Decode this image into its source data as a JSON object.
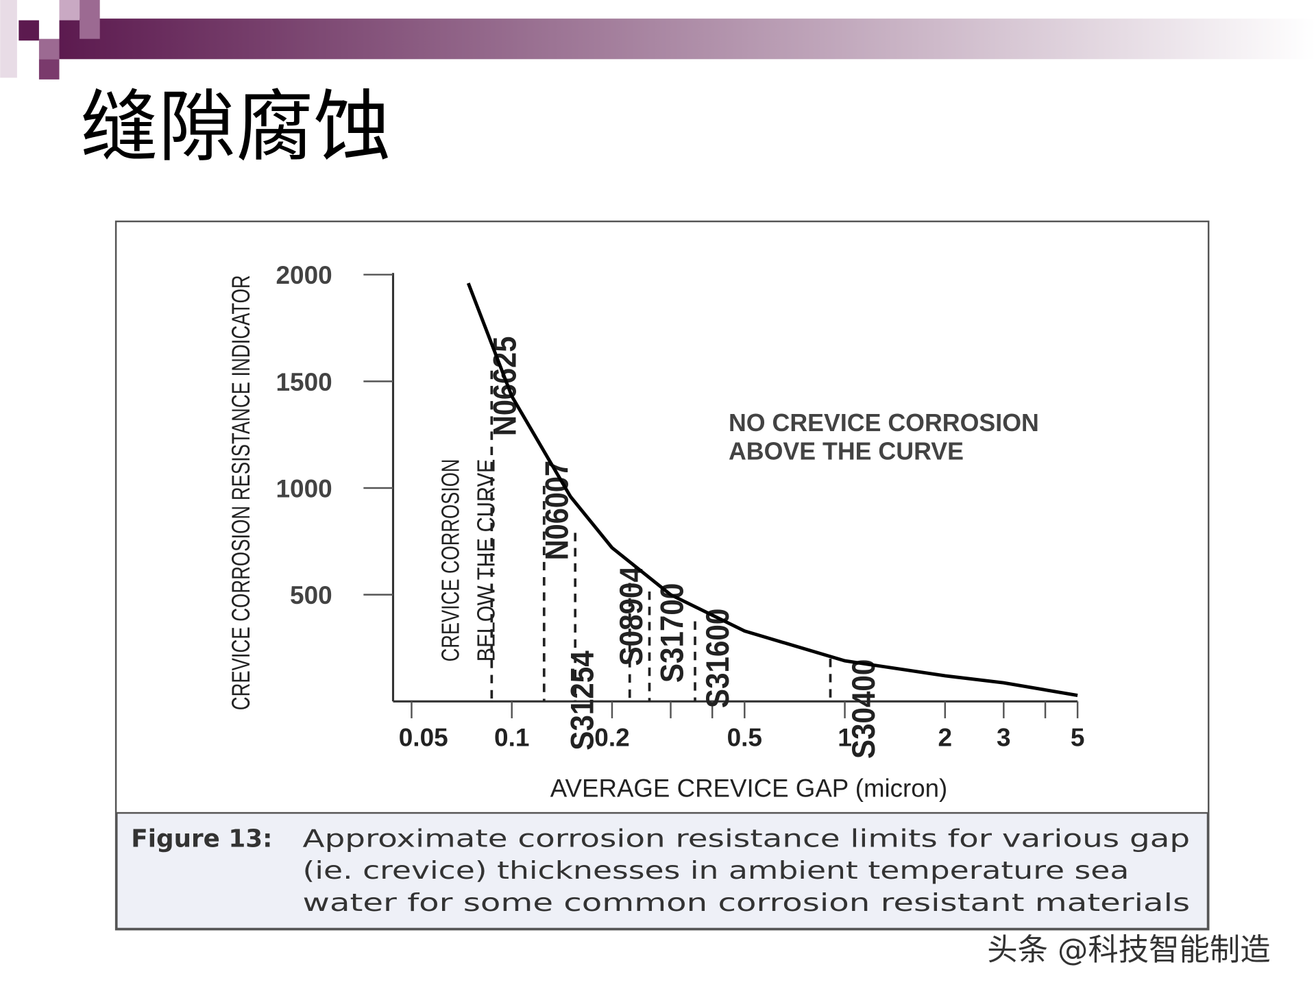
{
  "title": "缝隙腐蚀",
  "chart_data": {
    "type": "line",
    "x_label": "AVERAGE CREVICE GAP (micron)",
    "y_label": "CREVICE CORROSION RESISTANCE INDICATOR",
    "xscale": "log",
    "xlim": [
      0.044,
      5
    ],
    "ylim": [
      0,
      2000
    ],
    "xticks": [
      0.05,
      0.1,
      0.2,
      0.5,
      1,
      2,
      3,
      5
    ],
    "xminorticks": [
      0.3,
      0.4,
      4
    ],
    "yticks": [
      500,
      1000,
      1500,
      2000
    ],
    "color": "#000000",
    "x": [
      0.074,
      0.1,
      0.15,
      0.2,
      0.3,
      0.5,
      1,
      2,
      3,
      5
    ],
    "values": [
      1960,
      1430,
      960,
      720,
      500,
      330,
      190,
      120,
      87,
      28
    ],
    "markers": [
      {
        "label": "N06625",
        "x": 0.087,
        "y": 1550
      },
      {
        "label": "N06007",
        "x": 0.125,
        "y": 1010
      },
      {
        "label": "S31254",
        "x": 0.155,
        "y": 790
      },
      {
        "label": "S08904",
        "x": 0.226,
        "y": 555
      },
      {
        "label": "S31700",
        "x": 0.259,
        "y": 515
      },
      {
        "label": "S31600",
        "x": 0.355,
        "y": 375
      },
      {
        "label": "S30400",
        "x": 0.905,
        "y": 200
      }
    ],
    "annotations": [
      {
        "lines": [
          "NO CREVICE CORROSION",
          "ABOVE THE CURVE"
        ]
      },
      {
        "lines": [
          "CREVICE CORROSION",
          "BELOW THE CURVE"
        ]
      }
    ],
    "caption": {
      "label": "Figure 13:",
      "lines": [
        "Approximate corrosion resistance limits for various gap",
        "(ie. crevice) thicknesses in ambient temperature sea",
        "water for some common corrosion resistant materials"
      ]
    }
  },
  "watermark": "头条 @科技智能制造"
}
